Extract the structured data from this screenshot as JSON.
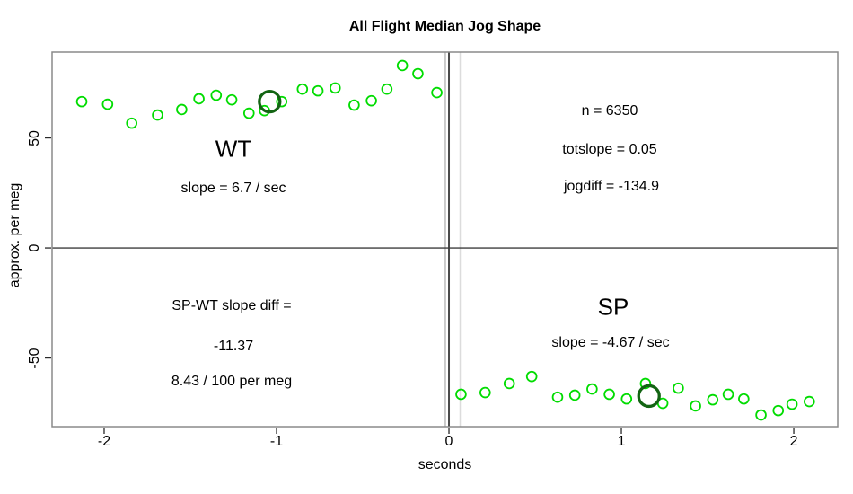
{
  "title": "All Flight Median Jog Shape",
  "axes": {
    "xlabel": "seconds",
    "ylabel": "approx. per meg",
    "x_ticks": [
      -2,
      -1,
      0,
      1,
      2
    ],
    "y_ticks": [
      -50,
      0,
      50
    ]
  },
  "annotations": {
    "wt_label": "WT",
    "wt_slope": "slope = 6.7 / sec",
    "n": "n = 6350",
    "totslope": "totslope = 0.05",
    "jogdiff": "jogdiff = -134.9",
    "diff_line1": "SP-WT slope diff =",
    "diff_line2": "-11.37",
    "diff_line3": "8.43 / 100 per meg",
    "sp_label": "SP",
    "sp_slope": "slope = -4.67 / sec"
  },
  "colors": {
    "point_green": "#00DC00",
    "highlight_dark_green": "#136413",
    "frame_gray": "#8a8a8a",
    "zero_line": "#3d3d3d",
    "tick_color": "#2a2a2a"
  },
  "chart_data": {
    "type": "scatter",
    "title": "All Flight Median Jog Shape",
    "xlabel": "seconds",
    "ylabel": "approx. per meg",
    "xlim": [
      -2.302,
      2.255
    ],
    "ylim": [
      -81.2,
      89.0
    ],
    "grid": false,
    "legend": "none",
    "series": [
      {
        "name": "WT",
        "marker": "open-circle",
        "color": "#00DC00",
        "points": [
          [
            -2.13,
            66.5
          ],
          [
            -1.98,
            65.3
          ],
          [
            -1.84,
            56.7
          ],
          [
            -1.69,
            60.4
          ],
          [
            -1.55,
            62.9
          ],
          [
            -1.45,
            67.8
          ],
          [
            -1.35,
            69.4
          ],
          [
            -1.26,
            67.3
          ],
          [
            -1.16,
            61.2
          ],
          [
            -1.07,
            62.4
          ],
          [
            -0.97,
            66.5
          ],
          [
            -0.85,
            72.2
          ],
          [
            -0.76,
            71.4
          ],
          [
            -0.66,
            72.7
          ],
          [
            -0.55,
            64.9
          ],
          [
            -0.45,
            66.9
          ],
          [
            -0.36,
            72.2
          ],
          [
            -0.27,
            82.9
          ],
          [
            -0.18,
            79.2
          ],
          [
            -0.07,
            70.6
          ]
        ],
        "highlight_point": [
          -1.04,
          66.5
        ],
        "highlight_color": "#136413"
      },
      {
        "name": "SP",
        "marker": "open-circle",
        "color": "#00DC00",
        "points": [
          [
            0.07,
            -66.5
          ],
          [
            0.21,
            -65.7
          ],
          [
            0.35,
            -61.6
          ],
          [
            0.48,
            -58.4
          ],
          [
            0.63,
            -67.8
          ],
          [
            0.73,
            -66.9
          ],
          [
            0.83,
            -64.1
          ],
          [
            0.93,
            -66.5
          ],
          [
            1.03,
            -68.6
          ],
          [
            1.14,
            -61.6
          ],
          [
            1.24,
            -70.6
          ],
          [
            1.33,
            -63.7
          ],
          [
            1.43,
            -71.8
          ],
          [
            1.53,
            -69.0
          ],
          [
            1.62,
            -66.5
          ],
          [
            1.71,
            -68.6
          ],
          [
            1.81,
            -75.9
          ],
          [
            1.91,
            -73.9
          ],
          [
            1.99,
            -71.0
          ],
          [
            2.09,
            -69.8
          ]
        ],
        "highlight_point": [
          1.16,
          -67.3
        ],
        "highlight_color": "#136413"
      }
    ],
    "reference_lines": {
      "horizontal": [
        {
          "y": 0,
          "color": "#3d3d3d",
          "width": 1.3
        }
      ],
      "vertical": [
        {
          "x": -0.021,
          "color": "#9a9a9a",
          "width": 1.0
        },
        {
          "x": 0.0,
          "color": "#4a4a4a",
          "width": 2.0
        },
        {
          "x": 0.065,
          "color": "#dcdcdc",
          "width": 1.5
        }
      ]
    }
  }
}
